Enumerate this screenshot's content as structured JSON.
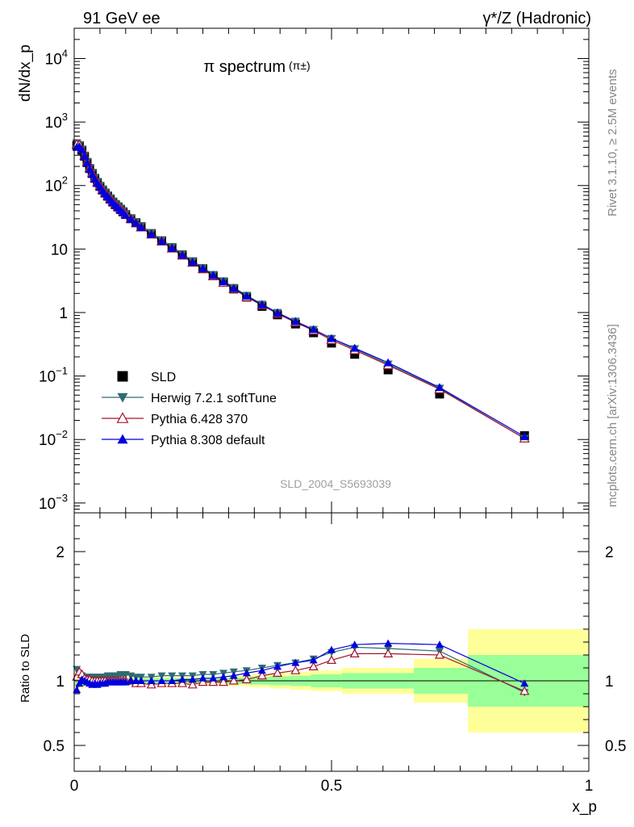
{
  "header": {
    "left_label": "91 GeV ee",
    "right_label": "γ*/Z (Hadronic)",
    "plot_title": "π spectrum",
    "plot_title_sub": "(π±)",
    "side_label_top": "Rivet 3.1.10, ≥ 2.5M events",
    "side_label_bottom": "mcplots.cern.ch [arXiv:1306.3436]",
    "watermark": "SLD_2004_S5693039"
  },
  "legend": [
    {
      "label": "SLD",
      "marker": "square",
      "color": "#000000"
    },
    {
      "label": "Herwig 7.2.1 softTune",
      "marker": "triangle-down",
      "color": "#2f6b73"
    },
    {
      "label": "Pythia 6.428 370",
      "marker": "triangle-up-open",
      "color": "#a3162b"
    },
    {
      "label": "Pythia 8.308 default",
      "marker": "triangle-up",
      "color": "#0000dd"
    }
  ],
  "chart_data": [
    {
      "type": "line",
      "name": "main",
      "ylabel": "dN/dx_p",
      "yscale": "log",
      "xlim": [
        0,
        1
      ],
      "ylim": [
        0.0007,
        30000
      ],
      "ytick_labels": [
        "10^-3",
        "10^-2",
        "10^-1",
        "1",
        "10",
        "10^2",
        "10^3",
        "10^4"
      ],
      "ytick_values": [
        0.001,
        0.01,
        0.1,
        1,
        10,
        100,
        1000,
        10000
      ],
      "x": [
        0.005,
        0.01,
        0.015,
        0.02,
        0.025,
        0.03,
        0.035,
        0.04,
        0.045,
        0.05,
        0.055,
        0.06,
        0.065,
        0.07,
        0.075,
        0.08,
        0.085,
        0.09,
        0.095,
        0.1,
        0.11,
        0.12,
        0.13,
        0.15,
        0.17,
        0.19,
        0.21,
        0.23,
        0.25,
        0.27,
        0.29,
        0.31,
        0.335,
        0.365,
        0.395,
        0.43,
        0.465,
        0.5,
        0.545,
        0.61,
        0.71,
        0.875
      ],
      "series": [
        {
          "name": "SLD",
          "values": [
            430,
            420,
            360,
            290,
            230,
            185,
            155,
            130,
            112,
            97,
            85,
            76,
            68,
            61,
            55,
            50,
            46,
            42,
            38.5,
            35,
            30,
            26,
            22.5,
            17.5,
            13.5,
            10.5,
            8.1,
            6.3,
            4.9,
            3.8,
            3.0,
            2.35,
            1.75,
            1.25,
            0.92,
            0.66,
            0.48,
            0.33,
            0.22,
            0.125,
            0.052,
            0.0115
          ]
        },
        {
          "name": "Herwig 7.2.1 softTune",
          "values": [
            470,
            440,
            375,
            300,
            238,
            191,
            160,
            134,
            115,
            100,
            88,
            79,
            71,
            64,
            57,
            52,
            48,
            44,
            40,
            36,
            31,
            27,
            23.3,
            18.1,
            14,
            10.9,
            8.4,
            6.5,
            5.1,
            3.95,
            3.15,
            2.48,
            1.86,
            1.35,
            1.0,
            0.73,
            0.54,
            0.39,
            0.268,
            0.154,
            0.064,
            0.0104
          ]
        },
        {
          "name": "Pythia 6.428 370",
          "values": [
            445,
            440,
            375,
            296,
            235,
            189,
            157,
            132,
            113,
            98,
            86,
            77,
            69,
            62,
            56,
            51,
            46.5,
            43,
            39,
            35.5,
            30,
            25.5,
            22,
            17,
            13.2,
            10.2,
            7.9,
            6.1,
            4.85,
            3.75,
            2.95,
            2.35,
            1.75,
            1.3,
            0.96,
            0.7,
            0.52,
            0.37,
            0.255,
            0.148,
            0.062,
            0.0104
          ]
        },
        {
          "name": "Pythia 8.308 default",
          "values": [
            400,
            410,
            365,
            290,
            228,
            181,
            150,
            127,
            109,
            95,
            83,
            74,
            67,
            60,
            54,
            49,
            45,
            41,
            37.5,
            34,
            29.5,
            25.5,
            22,
            17,
            13.2,
            10.3,
            8,
            6.2,
            4.9,
            3.85,
            3.05,
            2.4,
            1.82,
            1.32,
            0.98,
            0.72,
            0.54,
            0.39,
            0.275,
            0.162,
            0.066,
            0.0111
          ]
        }
      ]
    },
    {
      "type": "line",
      "name": "ratio",
      "xlabel": "x_p",
      "ylabel": "Ratio to SLD",
      "xlim": [
        0,
        1
      ],
      "ylim": [
        0.3,
        2.3
      ],
      "xtick_labels": [
        "0",
        "0.5",
        "1"
      ],
      "xtick_values": [
        0,
        0.5,
        1
      ],
      "ytick_labels": [
        "0.5",
        "1",
        "2"
      ],
      "ytick_values": [
        0.5,
        1,
        2
      ],
      "uncertainty_bands": {
        "edges": [
          0,
          0.02,
          0.05,
          0.1,
          0.14,
          0.2,
          0.26,
          0.3,
          0.34,
          0.38,
          0.42,
          0.46,
          0.52,
          0.66,
          0.765,
          1.0
        ],
        "green": [
          0.04,
          0.03,
          0.02,
          0.02,
          0.02,
          0.02,
          0.02,
          0.025,
          0.03,
          0.035,
          0.04,
          0.05,
          0.06,
          0.1,
          0.2
        ],
        "yellow": [
          0.06,
          0.04,
          0.03,
          0.03,
          0.03,
          0.03,
          0.03,
          0.04,
          0.05,
          0.06,
          0.07,
          0.08,
          0.1,
          0.17,
          0.4
        ]
      },
      "x": [
        0.005,
        0.01,
        0.015,
        0.02,
        0.025,
        0.03,
        0.035,
        0.04,
        0.045,
        0.05,
        0.055,
        0.06,
        0.065,
        0.07,
        0.075,
        0.08,
        0.085,
        0.09,
        0.095,
        0.1,
        0.11,
        0.12,
        0.13,
        0.15,
        0.17,
        0.19,
        0.21,
        0.23,
        0.25,
        0.27,
        0.29,
        0.31,
        0.335,
        0.365,
        0.395,
        0.43,
        0.465,
        0.5,
        0.545,
        0.61,
        0.71,
        0.875
      ],
      "series": [
        {
          "name": "Herwig 7.2.1 softTune",
          "values": [
            1.09,
            1.05,
            1.04,
            1.03,
            1.03,
            1.03,
            1.03,
            1.03,
            1.03,
            1.03,
            1.03,
            1.03,
            1.04,
            1.04,
            1.04,
            1.04,
            1.04,
            1.05,
            1.05,
            1.05,
            1.04,
            1.03,
            1.03,
            1.03,
            1.04,
            1.04,
            1.04,
            1.04,
            1.05,
            1.05,
            1.06,
            1.07,
            1.08,
            1.1,
            1.12,
            1.14,
            1.17,
            1.22,
            1.26,
            1.25,
            1.23,
            0.91
          ]
        },
        {
          "name": "Pythia 6.428 370",
          "values": [
            1.03,
            1.07,
            1.05,
            1.02,
            1.01,
            1.01,
            1.0,
            1.0,
            1.0,
            1.0,
            1.0,
            1.0,
            1.0,
            1.0,
            1.0,
            1.0,
            1.0,
            1.0,
            1.0,
            1.0,
            1.0,
            0.98,
            0.98,
            0.97,
            0.98,
            0.98,
            0.98,
            0.97,
            0.99,
            0.99,
            0.99,
            1.0,
            1.01,
            1.04,
            1.06,
            1.08,
            1.11,
            1.16,
            1.21,
            1.21,
            1.2,
            0.92
          ]
        },
        {
          "name": "Pythia 8.308 default",
          "values": [
            0.93,
            0.98,
            1.01,
            1.0,
            0.99,
            0.98,
            0.97,
            0.98,
            0.97,
            0.98,
            0.98,
            0.98,
            0.99,
            0.99,
            0.99,
            0.99,
            0.99,
            0.99,
            0.99,
            0.99,
            1.0,
            1.0,
            1.0,
            1.0,
            1.0,
            1.0,
            1.01,
            1.01,
            1.02,
            1.02,
            1.03,
            1.04,
            1.06,
            1.08,
            1.11,
            1.14,
            1.16,
            1.24,
            1.28,
            1.29,
            1.28,
            0.98
          ]
        }
      ]
    }
  ]
}
